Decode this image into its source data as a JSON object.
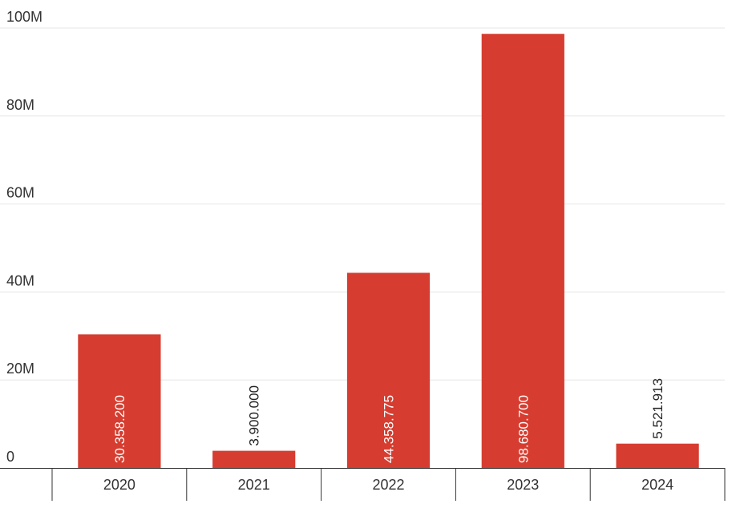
{
  "chart_data": {
    "type": "bar",
    "title": "",
    "xlabel": "",
    "ylabel": "",
    "categories": [
      "2020",
      "2021",
      "2022",
      "2023",
      "2024"
    ],
    "values": [
      30358200,
      3900000,
      44358775,
      98680700,
      5521913
    ],
    "data_labels": [
      "30.358.200",
      "3.900.000",
      "44.358.775",
      "98.680.700",
      "5.521.913"
    ],
    "ylim": [
      0,
      100000000
    ],
    "y_ticks": [
      0,
      20000000,
      40000000,
      60000000,
      80000000,
      100000000
    ],
    "y_tick_labels": [
      "0",
      "20M",
      "40M",
      "60M",
      "80M",
      "100M"
    ],
    "grid": true,
    "legend": "none",
    "bar_color": "#d63c2f",
    "label_color_inside": "#ffffff",
    "label_color_outside": "#222222"
  }
}
